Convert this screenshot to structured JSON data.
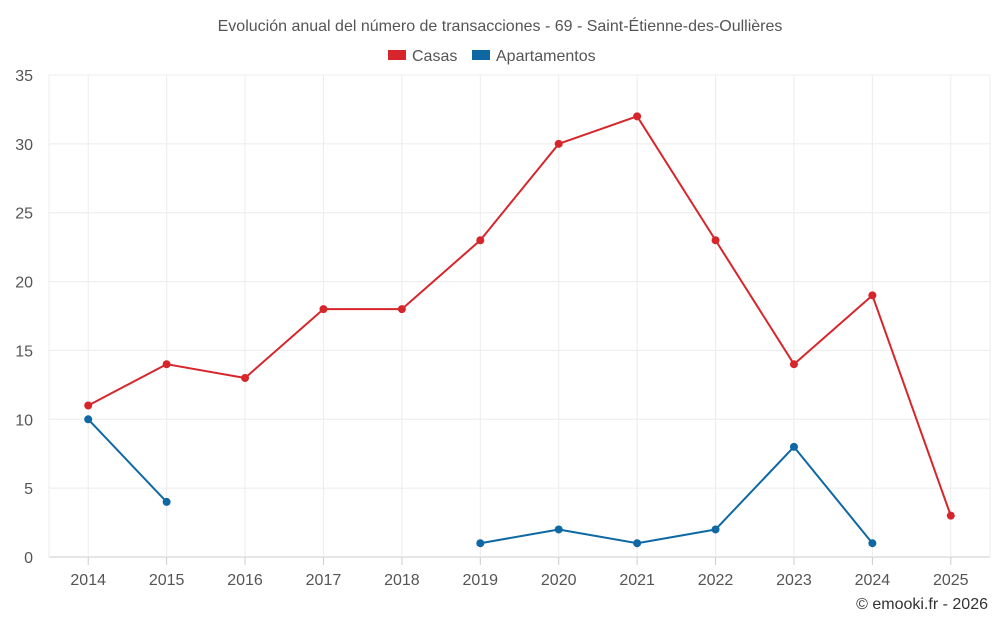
{
  "chart_data": {
    "type": "line",
    "title": "Evolución anual del número de transacciones - 69 - Saint-Étienne-des-Oullières",
    "categories": [
      "2014",
      "2015",
      "2016",
      "2017",
      "2018",
      "2019",
      "2020",
      "2021",
      "2022",
      "2023",
      "2024",
      "2025"
    ],
    "ylim": [
      0,
      35
    ],
    "yticks": [
      0,
      5,
      10,
      15,
      20,
      25,
      30,
      35
    ],
    "series": [
      {
        "name": "Casas",
        "color": "#d7262b",
        "values": [
          11,
          14,
          13,
          18,
          18,
          23,
          30,
          32,
          23,
          14,
          19,
          3
        ]
      },
      {
        "name": "Apartamentos",
        "color": "#0e68a4",
        "values": [
          10,
          4,
          null,
          null,
          null,
          1,
          2,
          1,
          2,
          8,
          1,
          null
        ]
      }
    ],
    "legend_position": "top-center",
    "grid": true
  },
  "credit": "© emooki.fr - 2026"
}
